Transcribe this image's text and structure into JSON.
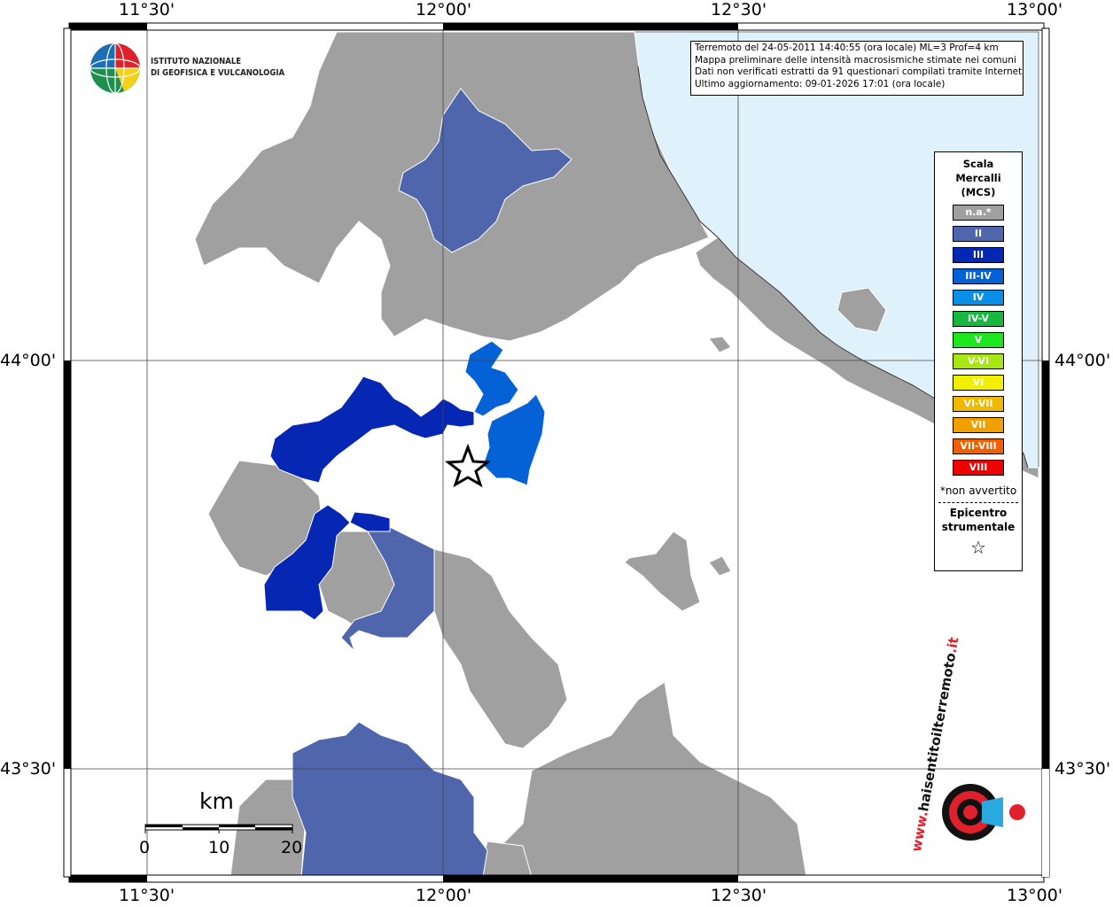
{
  "title_box": {
    "line1": "Terremoto del 24-05-2011 14:40:55 (ora locale) ML=3 Prof=4 km",
    "line2": "Mappa preliminare delle intensità macrosismiche stimate nei comuni",
    "line3": "Dati non verificati estratti da 91 questionari compilati tramite Internet.",
    "line4": "Ultimo aggiornamento: 09-01-2026 17:01 (ora locale)"
  },
  "logo": {
    "line1": "ISTITUTO NAZIONALE",
    "line2": "DI GEOFISICA E VULCANOLOGIA"
  },
  "axes": {
    "lon_top": [
      "11°30'",
      "12°00'",
      "12°30'",
      "13°00'"
    ],
    "lon_bottom": [
      "11°30'",
      "12°00'",
      "12°30'",
      "13°00'"
    ],
    "lat_left": [
      "44°00'",
      "43°30'"
    ],
    "lat_right": [
      "44°00'",
      "43°30'"
    ]
  },
  "legend": {
    "title1": "Scala",
    "title2": "Mercalli",
    "title3": "(MCS)",
    "items": [
      {
        "label": "n.a.*",
        "color": "#a0a0a0"
      },
      {
        "label": "II",
        "color": "#4f66ad"
      },
      {
        "label": "III",
        "color": "#0527b3"
      },
      {
        "label": "III-IV",
        "color": "#0562d6"
      },
      {
        "label": "IV",
        "color": "#0b8ee6"
      },
      {
        "label": "IV-V",
        "color": "#18b840"
      },
      {
        "label": "V",
        "color": "#1ee61e"
      },
      {
        "label": "V-VI",
        "color": "#a8e614"
      },
      {
        "label": "VI",
        "color": "#f0f000"
      },
      {
        "label": "VI-VII",
        "color": "#f0b800"
      },
      {
        "label": "VII",
        "color": "#f0a000"
      },
      {
        "label": "VII-VIII",
        "color": "#f06000"
      },
      {
        "label": "VIII",
        "color": "#f00000"
      }
    ],
    "note": "*non avvertito",
    "epi1": "Epicentro",
    "epi2": "strumentale",
    "star": "☆"
  },
  "scale_bar": {
    "unit": "km",
    "labels": [
      "0",
      "10",
      "20"
    ]
  },
  "badge": {
    "text_main": "haisentitoilterremoto",
    "text_tld": ".it",
    "text_www": "www."
  },
  "colors": {
    "land_na": "#a0a0a0",
    "sea": "#dff2fc",
    "mcs_II": "#4f66ad",
    "mcs_III": "#0527b3",
    "mcs_III_IV": "#0562d6"
  }
}
